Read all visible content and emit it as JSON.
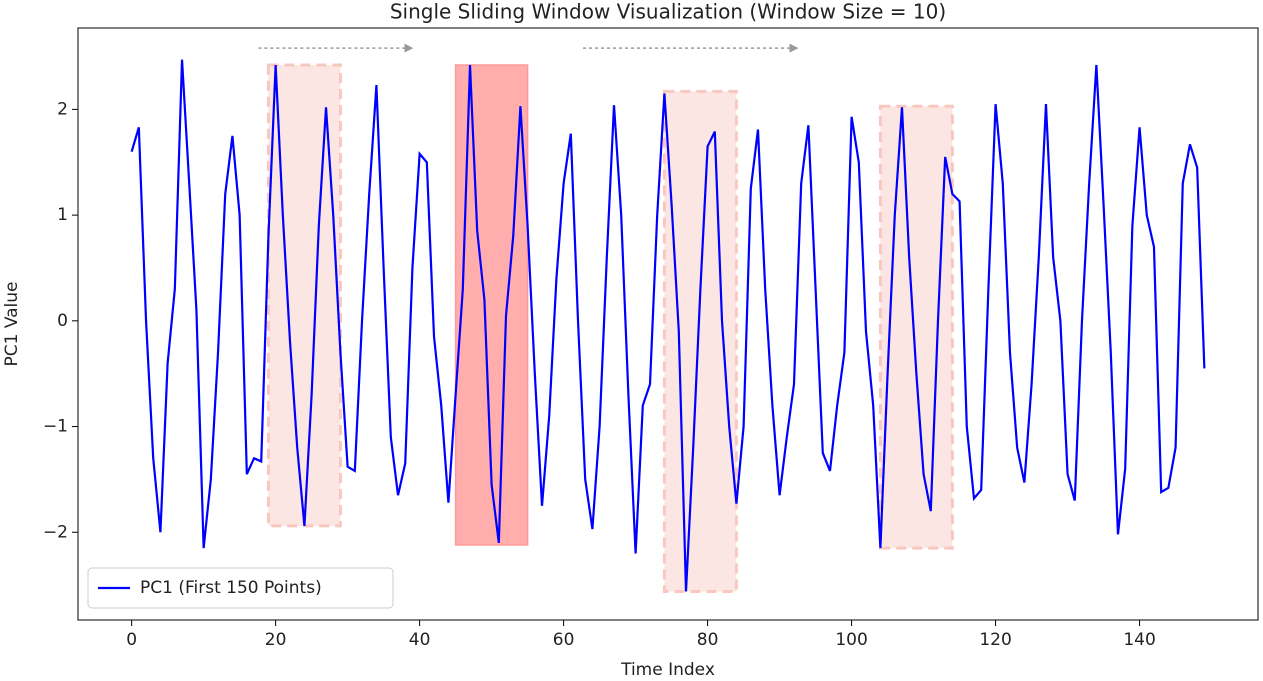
{
  "chart_data": {
    "type": "line",
    "title": "Single Sliding Window Visualization (Window Size = 10)",
    "xlabel": "Time Index",
    "ylabel": "PC1 Value",
    "x": [
      0,
      1,
      2,
      3,
      4,
      5,
      6,
      7,
      8,
      9,
      10,
      11,
      12,
      13,
      14,
      15,
      16,
      17,
      18,
      19,
      20,
      21,
      22,
      23,
      24,
      25,
      26,
      27,
      28,
      29,
      30,
      31,
      32,
      33,
      34,
      35,
      36,
      37,
      38,
      39,
      40,
      41,
      42,
      43,
      44,
      45,
      46,
      47,
      48,
      49,
      50,
      51,
      52,
      53,
      54,
      55,
      56,
      57,
      58,
      59,
      60,
      61,
      62,
      63,
      64,
      65,
      66,
      67,
      68,
      69,
      70,
      71,
      72,
      73,
      74,
      75,
      76,
      77,
      78,
      79,
      80,
      81,
      82,
      83,
      84,
      85,
      86,
      87,
      88,
      89,
      90,
      91,
      92,
      93,
      94,
      95,
      96,
      97,
      98,
      99,
      100,
      101,
      102,
      103,
      104,
      105,
      106,
      107,
      108,
      109,
      110,
      111,
      112,
      113,
      114,
      115,
      116,
      117,
      118,
      119,
      120,
      121,
      122,
      123,
      124,
      125,
      126,
      127,
      128,
      129,
      130,
      131,
      132,
      133,
      134,
      135,
      136,
      137,
      138,
      139,
      140,
      141,
      142,
      143,
      144,
      145,
      146,
      147,
      148,
      149
    ],
    "series": [
      {
        "name": "PC1 (First 150 Points)",
        "color": "#0000ff",
        "values": [
          1.6,
          1.83,
          0.0,
          -1.3,
          -2.0,
          -0.4,
          0.3,
          2.47,
          1.3,
          0.1,
          -2.15,
          -1.5,
          -0.3,
          1.2,
          1.75,
          1.0,
          -1.45,
          -1.3,
          -1.33,
          0.8,
          2.42,
          1.0,
          -0.2,
          -1.2,
          -1.94,
          -0.7,
          0.9,
          2.02,
          1.0,
          -0.3,
          -1.38,
          -1.42,
          0.0,
          1.2,
          2.23,
          0.5,
          -1.1,
          -1.65,
          -1.35,
          0.5,
          1.58,
          1.5,
          -0.15,
          -0.8,
          -1.72,
          -0.7,
          0.3,
          2.42,
          0.85,
          0.2,
          -1.55,
          -2.1,
          0.05,
          0.8,
          2.03,
          0.9,
          -0.5,
          -1.75,
          -0.9,
          0.4,
          1.3,
          1.77,
          0.0,
          -1.5,
          -1.97,
          -1.0,
          0.6,
          2.04,
          1.0,
          -0.7,
          -2.2,
          -0.8,
          -0.6,
          1.0,
          2.15,
          1.1,
          -0.1,
          -2.56,
          -1.2,
          0.3,
          1.65,
          1.79,
          0.0,
          -1.0,
          -1.73,
          -1.0,
          1.25,
          1.81,
          0.3,
          -0.8,
          -1.65,
          -1.1,
          -0.6,
          1.3,
          1.85,
          0.3,
          -1.25,
          -1.42,
          -0.8,
          -0.3,
          1.93,
          1.5,
          -0.1,
          -0.8,
          -2.15,
          -0.5,
          1.0,
          2.02,
          0.6,
          -0.5,
          -1.45,
          -1.8,
          0.0,
          1.55,
          1.2,
          1.13,
          -1.0,
          -1.68,
          -1.6,
          0.3,
          2.05,
          1.3,
          -0.3,
          -1.2,
          -1.53,
          -0.6,
          0.6,
          2.05,
          0.6,
          0.0,
          -1.45,
          -1.7,
          0.0,
          1.3,
          2.42,
          1.1,
          -0.3,
          -2.02,
          -1.4,
          0.9,
          1.83,
          1.0,
          0.7,
          -1.62,
          -1.58,
          -1.2,
          1.3,
          1.67,
          1.45,
          -0.45
        ]
      }
    ],
    "windows": [
      {
        "start": 19,
        "end": 29,
        "ymin": -1.94,
        "ymax": 2.42,
        "style": "dashed",
        "color": "#f8c8c0"
      },
      {
        "start": 45,
        "end": 55,
        "ymin": -2.12,
        "ymax": 2.42,
        "style": "solid",
        "color": "#ff9999"
      },
      {
        "start": 74,
        "end": 84,
        "ymin": -2.56,
        "ymax": 2.17,
        "style": "dashed",
        "color": "#f8c8c0"
      },
      {
        "start": 104,
        "end": 114,
        "ymin": -2.15,
        "ymax": 2.03,
        "style": "dashed",
        "color": "#f8c8c0"
      }
    ],
    "arrows": [
      {
        "x0": 17.6,
        "x1": 39,
        "y": 2.58
      },
      {
        "x0": 62.7,
        "x1": 92.5,
        "y": 2.58
      }
    ],
    "xlim": [
      -7.45,
      156.45
    ],
    "ylim": [
      -2.83,
      2.77
    ],
    "xticks": [
      0,
      20,
      40,
      60,
      80,
      100,
      120,
      140
    ],
    "yticks": [
      {
        "value": -2,
        "label": "−2"
      },
      {
        "value": -1,
        "label": "−1"
      },
      0,
      1,
      2
    ],
    "legend": "lower left",
    "grid": false
  }
}
